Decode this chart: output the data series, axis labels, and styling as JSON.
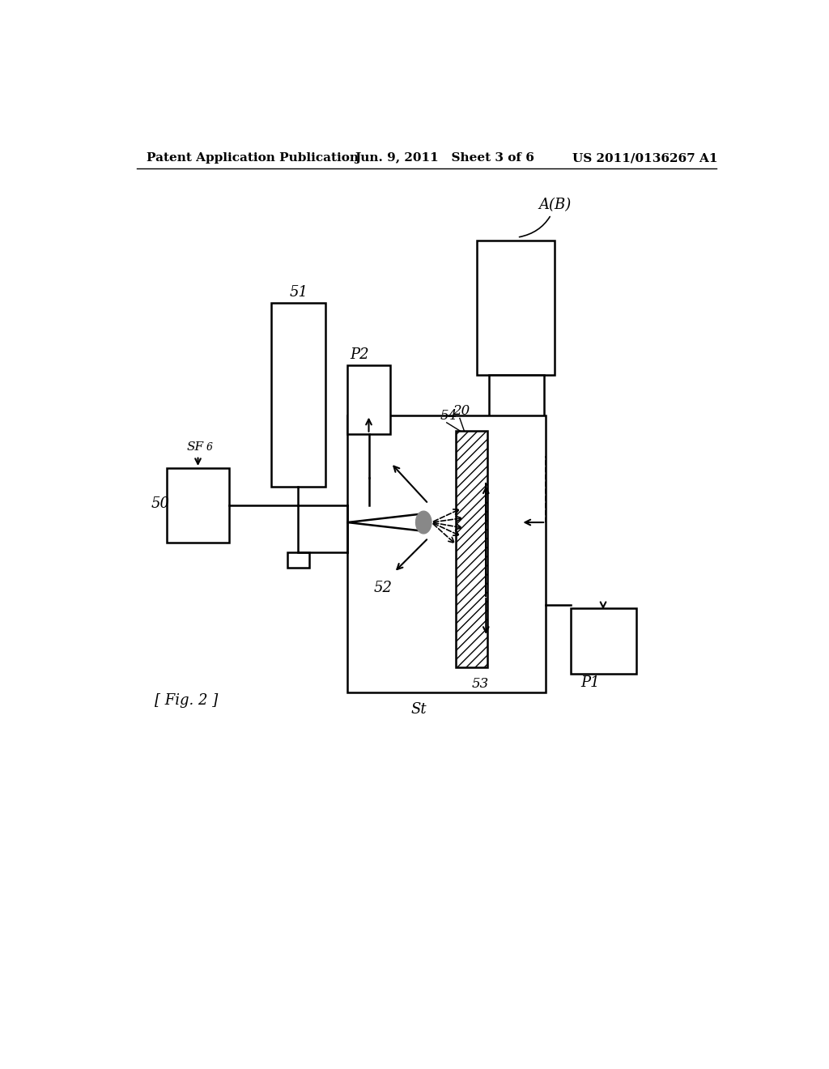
{
  "bg_color": "#ffffff",
  "header_left": "Patent Application Publication",
  "header_mid": "Jun. 9, 2011   Sheet 3 of 6",
  "header_right": "US 2011/0136267 A1",
  "fig_label": "[ Fig. 2 ]"
}
